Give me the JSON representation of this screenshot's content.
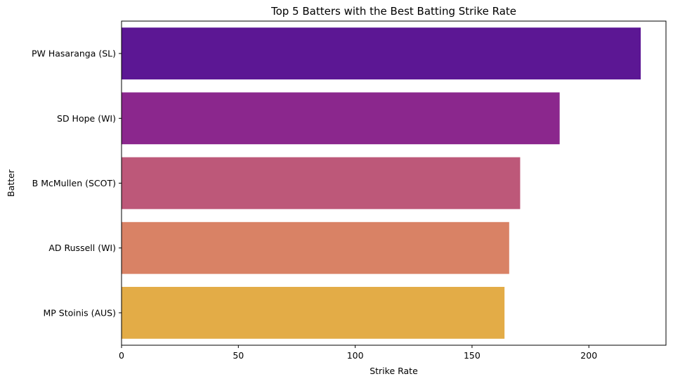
{
  "chart_data": {
    "type": "bar",
    "orientation": "horizontal",
    "title": "Top 5 Batters with the Best Batting Strike Rate",
    "xlabel": "Strike Rate",
    "ylabel": "Batter",
    "categories": [
      "PW Hasaranga (SL)",
      "SD Hope (WI)",
      "B McMullen (SCOT)",
      "AD Russell (WI)",
      "MP Stoinis (AUS)"
    ],
    "values": [
      222.2,
      187.5,
      170.6,
      165.9,
      163.9
    ],
    "colors": [
      "#5c1794",
      "#8b278d",
      "#bd5879",
      "#d98265",
      "#e3ac47"
    ],
    "xlim": [
      0,
      233
    ],
    "xticks": [
      0,
      50,
      100,
      150,
      200
    ],
    "grid": false,
    "legend": "none"
  }
}
